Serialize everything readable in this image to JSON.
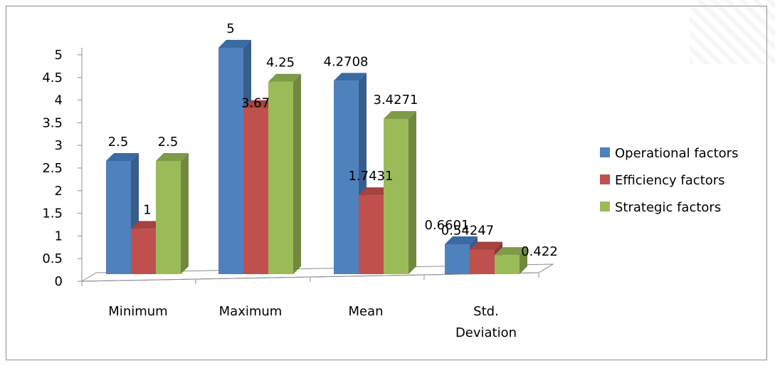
{
  "chart_data": {
    "type": "bar",
    "style": "3d-clustered-column",
    "categories": [
      "Minimum",
      "Maximum",
      "Mean",
      "Std. Deviation"
    ],
    "category_lines": [
      [
        "Minimum"
      ],
      [
        "Maximum"
      ],
      [
        "Mean"
      ],
      [
        "Std.",
        "Deviation"
      ]
    ],
    "series": [
      {
        "name": "Operational factors",
        "values": [
          2.5,
          5,
          4.2708,
          0.6601
        ],
        "labels": [
          "2.5",
          "5",
          "4.2708",
          "0.6601"
        ],
        "color": "#4f81bd",
        "side_color": "#385d8a",
        "top_color": "#3a6aa3"
      },
      {
        "name": "Efficiency factors",
        "values": [
          1,
          3.67,
          1.7431,
          0.54247
        ],
        "labels": [
          "1",
          "3.67",
          "1.7431",
          "0.54247"
        ],
        "color": "#c0504d",
        "side_color": "#8c3836",
        "top_color": "#a44340"
      },
      {
        "name": "Strategic factors",
        "values": [
          2.5,
          4.25,
          3.4271,
          0.422
        ],
        "labels": [
          "2.5",
          "4.25",
          "3.4271",
          "0.422"
        ],
        "color": "#9bbb59",
        "side_color": "#71893f",
        "top_color": "#7f9a48"
      }
    ],
    "yticks": [
      "0",
      "0.5",
      "1",
      "1.5",
      "2",
      "2.5",
      "3",
      "3.5",
      "4",
      "4.5",
      "5"
    ],
    "ylim": [
      0,
      5
    ],
    "legend_position": "right",
    "grid": false
  }
}
